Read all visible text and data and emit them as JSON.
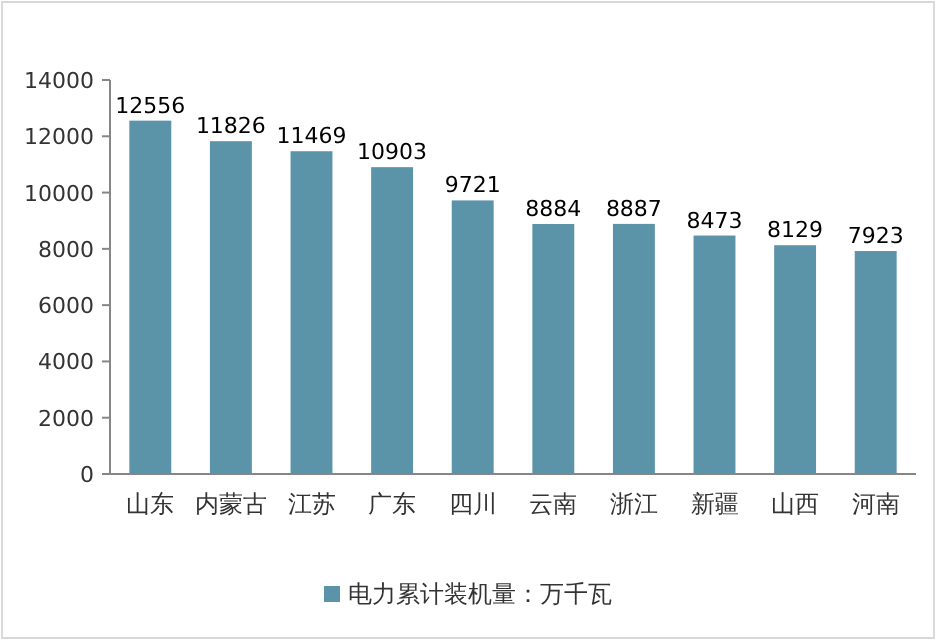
{
  "chart_data": {
    "type": "bar",
    "categories": [
      "山东",
      "内蒙古",
      "江苏",
      "广东",
      "四川",
      "云南",
      "浙江",
      "新疆",
      "山西",
      "河南"
    ],
    "series": [
      {
        "name": "电力累计装机量：万千瓦",
        "color": "#5b94a9",
        "values": [
          12556,
          11826,
          11469,
          10903,
          9721,
          8884,
          8887,
          8473,
          8129,
          7923
        ]
      }
    ],
    "ylim": [
      0,
      14000
    ],
    "yticks": [
      0,
      2000,
      4000,
      6000,
      8000,
      10000,
      12000,
      14000
    ],
    "data_labels": true,
    "grid": false,
    "legend": "bottom"
  }
}
